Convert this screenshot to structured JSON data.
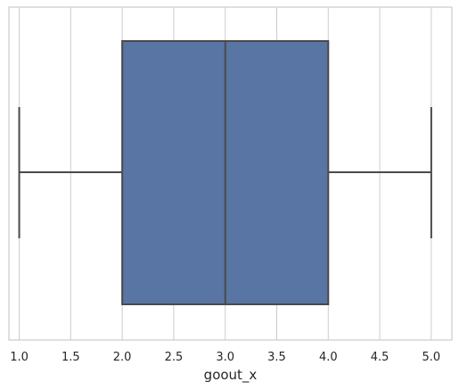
{
  "chart_data": {
    "type": "boxplot",
    "orientation": "horizontal",
    "xlabel": "goout_x",
    "ylabel": "",
    "xlim": [
      0.9,
      5.2
    ],
    "x_ticks": [
      1.0,
      1.5,
      2.0,
      2.5,
      3.0,
      3.5,
      4.0,
      4.5,
      5.0
    ],
    "x_tick_labels": [
      "1.0",
      "1.5",
      "2.0",
      "2.5",
      "3.0",
      "3.5",
      "4.0",
      "4.5",
      "5.0"
    ],
    "grid": true,
    "box": {
      "whisker_low": 1.0,
      "q1": 2.0,
      "median": 3.0,
      "q3": 4.0,
      "whisker_high": 5.0
    },
    "colors": {
      "box_fill": "#5875a4",
      "line": "#4a4a4a",
      "grid": "#cccccc",
      "frame": "#cccccc"
    }
  }
}
